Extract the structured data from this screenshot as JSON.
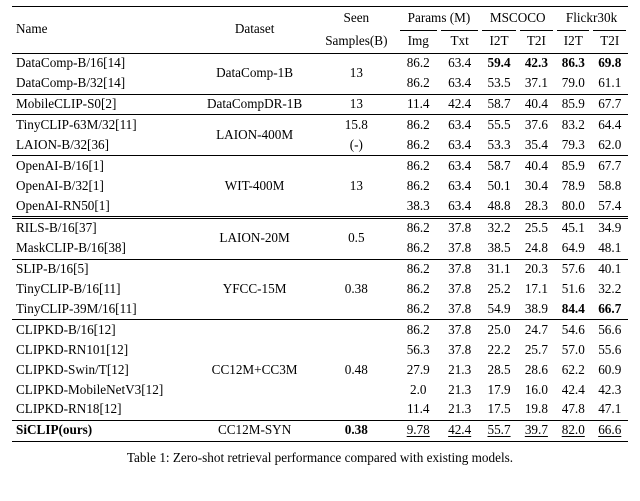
{
  "header": {
    "name": "Name",
    "dataset": "Dataset",
    "seen": "Seen",
    "seen_sub": "Samples(B)",
    "params": "Params (M)",
    "params_img": "Img",
    "params_txt": "Txt",
    "mscoco": "MSCOCO",
    "flickr": "Flickr30k",
    "i2t": "I2T",
    "t2i": "T2I"
  },
  "groups": [
    {
      "dataset": "DataComp-1B",
      "seen": "13",
      "rows": [
        {
          "name": "DataComp-B/16[14]",
          "img": "86.2",
          "txt": "63.4",
          "mc_i2t": "59.4",
          "mc_t2i": "42.3",
          "fl_i2t": "86.3",
          "fl_t2i": "69.8",
          "bold_cols": [
            "mc_i2t",
            "mc_t2i",
            "fl_i2t",
            "fl_t2i"
          ]
        },
        {
          "name": "DataComp-B/32[14]",
          "img": "86.2",
          "txt": "63.4",
          "mc_i2t": "53.5",
          "mc_t2i": "37.1",
          "fl_i2t": "79.0",
          "fl_t2i": "61.1"
        }
      ]
    },
    {
      "dataset": "DataCompDR-1B",
      "seen": "13",
      "rows": [
        {
          "name": "MobileCLIP-S0[2]",
          "img": "11.4",
          "txt": "42.4",
          "mc_i2t": "58.7",
          "mc_t2i": "40.4",
          "fl_i2t": "85.9",
          "fl_t2i": "67.7"
        }
      ]
    },
    {
      "dataset": "LAION-400M",
      "seen_per_row": [
        "15.8",
        "(-)"
      ],
      "rows": [
        {
          "name": "TinyCLIP-63M/32[11]",
          "img": "86.2",
          "txt": "63.4",
          "mc_i2t": "55.5",
          "mc_t2i": "37.6",
          "fl_i2t": "83.2",
          "fl_t2i": "64.4"
        },
        {
          "name": "LAION-B/32[36]",
          "img": "86.2",
          "txt": "63.4",
          "mc_i2t": "53.3",
          "mc_t2i": "35.4",
          "fl_i2t": "79.3",
          "fl_t2i": "62.0"
        }
      ]
    },
    {
      "dataset": "WIT-400M",
      "seen": "13",
      "rows": [
        {
          "name": "OpenAI-B/16[1]",
          "img": "86.2",
          "txt": "63.4",
          "mc_i2t": "58.7",
          "mc_t2i": "40.4",
          "fl_i2t": "85.9",
          "fl_t2i": "67.7"
        },
        {
          "name": "OpenAI-B/32[1]",
          "img": "86.2",
          "txt": "63.4",
          "mc_i2t": "50.1",
          "mc_t2i": "30.4",
          "fl_i2t": "78.9",
          "fl_t2i": "58.8"
        },
        {
          "name": "OpenAI-RN50[1]",
          "img": "38.3",
          "txt": "63.4",
          "mc_i2t": "48.8",
          "mc_t2i": "28.3",
          "fl_i2t": "80.0",
          "fl_t2i": "57.4"
        }
      ]
    },
    {
      "dataset": "LAION-20M",
      "seen": "0.5",
      "double_top": true,
      "rows": [
        {
          "name": "RILS-B/16[37]",
          "img": "86.2",
          "txt": "37.8",
          "mc_i2t": "32.2",
          "mc_t2i": "25.5",
          "fl_i2t": "45.1",
          "fl_t2i": "34.9"
        },
        {
          "name": "MaskCLIP-B/16[38]",
          "img": "86.2",
          "txt": "37.8",
          "mc_i2t": "38.5",
          "mc_t2i": "24.8",
          "fl_i2t": "64.9",
          "fl_t2i": "48.1"
        }
      ]
    },
    {
      "dataset": "YFCC-15M",
      "seen": "0.38",
      "rows": [
        {
          "name": "SLIP-B/16[5]",
          "img": "86.2",
          "txt": "37.8",
          "mc_i2t": "31.1",
          "mc_t2i": "20.3",
          "fl_i2t": "57.6",
          "fl_t2i": "40.1"
        },
        {
          "name": "TinyCLIP-B/16[11]",
          "img": "86.2",
          "txt": "37.8",
          "mc_i2t": "25.2",
          "mc_t2i": "17.1",
          "fl_i2t": "51.6",
          "fl_t2i": "32.2"
        },
        {
          "name": "TinyCLIP-39M/16[11]",
          "img": "86.2",
          "txt": "37.8",
          "mc_i2t": "54.9",
          "mc_t2i": "38.9",
          "fl_i2t": "84.4",
          "fl_t2i": "66.7",
          "bold_cols": [
            "fl_i2t",
            "fl_t2i"
          ]
        }
      ]
    },
    {
      "dataset": "CC12M+CC3M",
      "seen": "0.48",
      "rows": [
        {
          "name": "CLIPKD-B/16[12]",
          "img": "86.2",
          "txt": "37.8",
          "mc_i2t": "25.0",
          "mc_t2i": "24.7",
          "fl_i2t": "54.6",
          "fl_t2i": "56.6"
        },
        {
          "name": "CLIPKD-RN101[12]",
          "img": "56.3",
          "txt": "37.8",
          "mc_i2t": "22.2",
          "mc_t2i": "25.7",
          "fl_i2t": "57.0",
          "fl_t2i": "55.6"
        },
        {
          "name": "CLIPKD-Swin/T[12]",
          "img": "27.9",
          "txt": "21.3",
          "mc_i2t": "28.5",
          "mc_t2i": "28.6",
          "fl_i2t": "62.2",
          "fl_t2i": "60.9"
        },
        {
          "name": "CLIPKD-MobileNetV3[12]",
          "img": "2.0",
          "txt": "21.3",
          "mc_i2t": "17.9",
          "mc_t2i": "16.0",
          "fl_i2t": "42.4",
          "fl_t2i": "42.3"
        },
        {
          "name": "CLIPKD-RN18[12]",
          "img": "11.4",
          "txt": "21.3",
          "mc_i2t": "17.5",
          "mc_t2i": "19.8",
          "fl_i2t": "47.8",
          "fl_t2i": "47.1"
        }
      ]
    }
  ],
  "ours": {
    "name": "SiCLIP(ours)",
    "dataset": "CC12M-SYN",
    "seen": "0.38",
    "img": "9.78",
    "txt": "42.4",
    "mc_i2t": "55.7",
    "mc_t2i": "39.7",
    "fl_i2t": "82.0",
    "fl_t2i": "66.6"
  },
  "caption": "Table 1: Zero-shot retrieval performance compared with existing models."
}
